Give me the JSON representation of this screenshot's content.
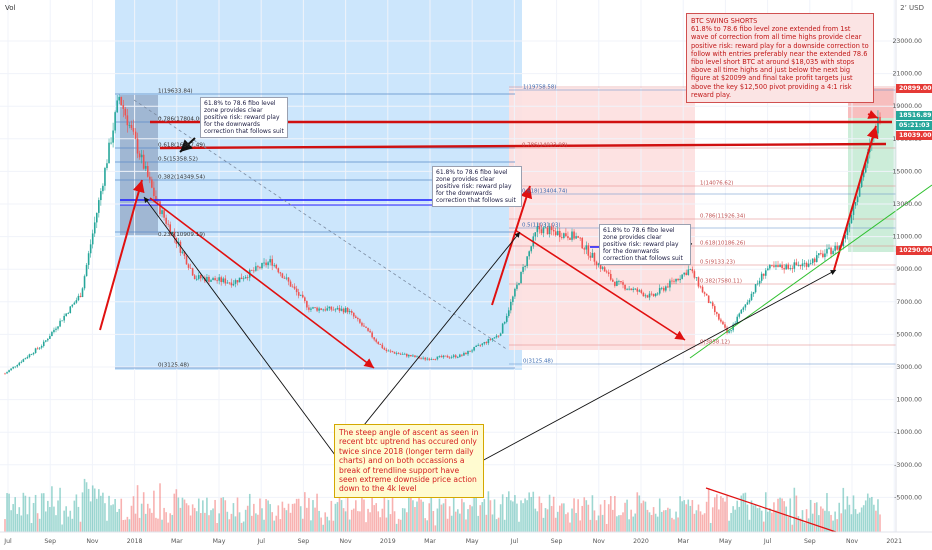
{
  "header": {
    "volume_label": "Vol",
    "currency_label": "2’ USD"
  },
  "colors": {
    "up": "#26a69a",
    "down": "#ef5350",
    "blue_zone": "#bbdefb",
    "pink_zone": "#fde0e0",
    "red": "#e01010",
    "blue": "#1a1aff",
    "green": "#20c020",
    "black": "#111111"
  },
  "price_axis": {
    "labels": [
      "23000.00",
      "21000.00",
      "19000.00",
      "17000.00",
      "15000.00",
      "13000.00",
      "11000.00",
      "9000.00",
      "7000.00",
      "5000.00",
      "3000.00",
      "1000.00",
      "-1000.00",
      "-3000.00",
      "-5000.00"
    ],
    "tags": [
      {
        "text": "20899.00",
        "color": "#e53935"
      },
      {
        "text": "18516.89",
        "color": "#26a69a"
      },
      {
        "text": "05:21:03",
        "color": "#26a69a"
      },
      {
        "text": "18039.00",
        "color": "#e53935"
      },
      {
        "text": "10290.00",
        "color": "#e53935"
      }
    ]
  },
  "time_axis": {
    "labels": [
      "Jul",
      "Sep",
      "Nov",
      "2018",
      "Mar",
      "May",
      "Jul",
      "Sep",
      "Nov",
      "2019",
      "Mar",
      "May",
      "Jul",
      "Sep",
      "Nov",
      "2020",
      "Mar",
      "May",
      "Jul",
      "Sep",
      "Nov",
      "2021"
    ]
  },
  "fib1": {
    "levels": [
      "1(19633.84)",
      "0.786(17804.00)",
      "0.618(16367.49)",
      "0.5(15358.52)",
      "0.382(14349.54)",
      "0(3125.48)"
    ],
    "level_0236": "0.236(10909.19)"
  },
  "fib2": {
    "levels": [
      "1(19758.58)",
      "1.618(20051.07)",
      "0.786(14023.98)",
      "0.618(13404.74)",
      "0.5(11031.03)",
      "0(3125.48)",
      "1(14076.62)",
      "0.786(11926.34)",
      "0.618(10186.26)",
      "0.5(9133.23)",
      "0.382(7580.11)",
      "0(3858.12)"
    ]
  },
  "notes": {
    "fibo_note_1": "61.8% to 78.6 fibo level zone provides clear positive risk: reward play for the downwards correction that follows suit",
    "fibo_note_2": "61.8% to 78.6 fibo level zone provides clear positive risk: reward play for the downwards correction that follows suit",
    "fibo_note_3": "61.8% to 78.6 fibo level zone provides clear positive risk: reward play for the downwards correction that follows suit",
    "big_note": "The steep angle of ascent as seen in recent btc uptrend has occured only twice since 2018 (longer term daily charts) and on both occassions a break of trendline support have seen extreme downside  price action down to the 4k level",
    "swing_title": "BTC SWING SHORTS",
    "swing_body": "61.8% to 78.6 fibo level zone extended from 1st wave of correction from all time highs provide clear positive risk: reward play for a downside correction to follow with entries preferably near the extended 78.6 fibo level short BTC at around $18,035 with stops above all time highs and just below the next big figure at $20099 and final take profit targets just above the key $12,500 pivot providing a 4:1 risk reward play."
  },
  "chart_data": {
    "type": "line",
    "title": "",
    "xlabel": "",
    "ylabel": "",
    "x": [
      "2017-07",
      "2017-09",
      "2017-11",
      "2017-12",
      "2018-01",
      "2018-02",
      "2018-03",
      "2018-05",
      "2018-07",
      "2018-09",
      "2018-11",
      "2018-12",
      "2019-02",
      "2019-04",
      "2019-06",
      "2019-07",
      "2019-09",
      "2019-11",
      "2020-01",
      "2020-03",
      "2020-05",
      "2020-07",
      "2020-09",
      "2020-11"
    ],
    "series": [
      {
        "values": [
          2600,
          4400,
          7500,
          19600,
          13000,
          8500,
          8200,
          9500,
          6600,
          6500,
          4000,
          3500,
          3700,
          5000,
          11500,
          11000,
          8200,
          7300,
          9000,
          5000,
          9000,
          9300,
          10500,
          18500
        ]
      }
    ],
    "ylim": [
      -6000,
      24000
    ],
    "grid": true
  }
}
